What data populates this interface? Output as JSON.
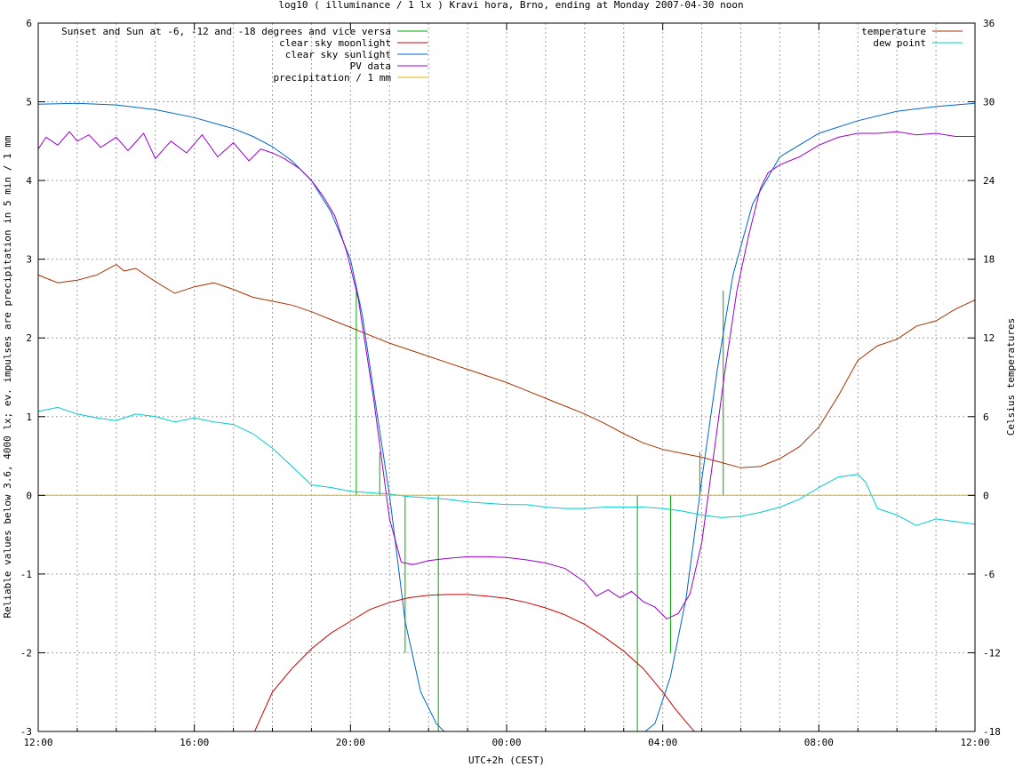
{
  "chart_data": {
    "type": "line",
    "title": "log10 ( illuminance / 1 lx ) Kravi hora, Brno, ending at Monday 2007-04-30 noon",
    "xlabel": "UTC+2h (CEST)",
    "ylabel": "Reliable values below 3.6, 4000 lx; ev. impulses are precipitation in 5 min / 1 mm",
    "y2label": "Celsius temperatures",
    "xlim": [
      12,
      36
    ],
    "ylim": [
      -3,
      6
    ],
    "y2lim": [
      -18,
      36
    ],
    "xticks": [
      {
        "v": 12,
        "label": "12:00"
      },
      {
        "v": 16,
        "label": "16:00"
      },
      {
        "v": 20,
        "label": "20:00"
      },
      {
        "v": 24,
        "label": "00:00"
      },
      {
        "v": 28,
        "label": "04:00"
      },
      {
        "v": 32,
        "label": "08:00"
      },
      {
        "v": 36,
        "label": "12:00"
      }
    ],
    "yticks": [
      {
        "v": -3,
        "label": "-3"
      },
      {
        "v": -2,
        "label": "-2"
      },
      {
        "v": -1,
        "label": "-1"
      },
      {
        "v": 0,
        "label": "0"
      },
      {
        "v": 1,
        "label": "1"
      },
      {
        "v": 2,
        "label": "2"
      },
      {
        "v": 3,
        "label": "3"
      },
      {
        "v": 4,
        "label": "4"
      },
      {
        "v": 5,
        "label": "5"
      },
      {
        "v": 6,
        "label": "6"
      }
    ],
    "y2ticks": [
      {
        "v": -18,
        "label": "-18"
      },
      {
        "v": -12,
        "label": "-12"
      },
      {
        "v": -6,
        "label": "-6"
      },
      {
        "v": 0,
        "label": "0"
      },
      {
        "v": 6,
        "label": "6"
      },
      {
        "v": 12,
        "label": "12"
      },
      {
        "v": 18,
        "label": "18"
      },
      {
        "v": 24,
        "label": "24"
      },
      {
        "v": 30,
        "label": "30"
      },
      {
        "v": 36,
        "label": "36"
      }
    ],
    "grid": true,
    "legend_left": [
      {
        "name": "Sunset and Sun at -6, -12 and -18 degrees and vice versa",
        "color": "#00aa00"
      },
      {
        "name": "clear sky moonlight",
        "color": "#cc0000"
      },
      {
        "name": "clear sky sunlight",
        "color": "#0066cc"
      },
      {
        "name": "PV data",
        "color": "#9900cc"
      },
      {
        "name": "precipitation / 1 mm",
        "color": "#e6b800"
      }
    ],
    "legend_right": [
      {
        "name": "temperature",
        "color": "#aa3300"
      },
      {
        "name": "dew point",
        "color": "#00cccc"
      }
    ],
    "series": [
      {
        "key": "sunlight",
        "color": "#0066cc",
        "axis": "y",
        "x": [
          12.0,
          13.0,
          14.0,
          15.0,
          16.0,
          17.0,
          17.5,
          18.0,
          18.5,
          19.0,
          19.5,
          20.0,
          20.3,
          20.6,
          21.0,
          21.4,
          21.8,
          22.2,
          22.6,
          27.3,
          27.8,
          28.2,
          28.6,
          29.0,
          29.4,
          29.8,
          30.3,
          31.0,
          32.0,
          33.0,
          34.0,
          35.0,
          36.0
        ],
        "y": [
          4.97,
          4.98,
          4.96,
          4.9,
          4.8,
          4.66,
          4.56,
          4.43,
          4.25,
          4.0,
          3.6,
          3.0,
          2.3,
          1.3,
          0.0,
          -1.6,
          -2.5,
          -2.9,
          -3.1,
          -3.1,
          -2.9,
          -2.3,
          -1.3,
          0.2,
          1.6,
          2.8,
          3.7,
          4.3,
          4.6,
          4.76,
          4.88,
          4.94,
          4.98
        ]
      },
      {
        "key": "moonlight",
        "color": "#cc0000",
        "axis": "y",
        "x": [
          17.5,
          18.0,
          18.5,
          19.0,
          19.5,
          20.0,
          20.5,
          21.0,
          21.5,
          22.0,
          22.5,
          23.0,
          23.5,
          24.0,
          24.5,
          25.0,
          25.5,
          26.0,
          26.5,
          27.0,
          27.5,
          28.0,
          28.3,
          28.6,
          28.9
        ],
        "y": [
          -3.05,
          -2.5,
          -2.2,
          -1.95,
          -1.75,
          -1.6,
          -1.45,
          -1.36,
          -1.3,
          -1.27,
          -1.26,
          -1.26,
          -1.28,
          -1.31,
          -1.36,
          -1.43,
          -1.52,
          -1.64,
          -1.8,
          -1.98,
          -2.2,
          -2.5,
          -2.7,
          -2.88,
          -3.05
        ]
      },
      {
        "key": "pv",
        "color": "#9900cc",
        "axis": "y",
        "x": [
          12.0,
          12.2,
          12.5,
          12.8,
          13.0,
          13.3,
          13.6,
          14.0,
          14.3,
          14.7,
          15.0,
          15.4,
          15.8,
          16.2,
          16.6,
          17.0,
          17.4,
          17.7,
          18.0,
          18.3,
          18.7,
          19.0,
          19.3,
          19.6,
          19.9,
          20.2,
          20.6,
          21.0,
          21.3,
          21.6,
          22.0,
          22.5,
          23.0,
          23.5,
          24.0,
          24.5,
          25.0,
          25.5,
          26.0,
          26.3,
          26.6,
          26.9,
          27.2,
          27.5,
          27.8,
          28.1,
          28.4,
          28.7,
          29.0,
          29.3,
          29.6,
          29.9,
          30.2,
          30.5,
          30.7,
          31.0,
          31.5,
          32.0,
          32.5,
          33.0,
          33.5,
          34.0,
          34.5,
          35.0,
          35.5,
          36.0
        ],
        "y": [
          4.4,
          4.55,
          4.45,
          4.62,
          4.5,
          4.58,
          4.42,
          4.55,
          4.38,
          4.6,
          4.28,
          4.5,
          4.35,
          4.58,
          4.3,
          4.48,
          4.25,
          4.4,
          4.35,
          4.28,
          4.15,
          4.0,
          3.8,
          3.55,
          3.1,
          2.5,
          1.2,
          -0.3,
          -0.85,
          -0.88,
          -0.83,
          -0.8,
          -0.78,
          -0.78,
          -0.79,
          -0.82,
          -0.86,
          -0.93,
          -1.1,
          -1.28,
          -1.2,
          -1.3,
          -1.22,
          -1.35,
          -1.42,
          -1.57,
          -1.5,
          -1.25,
          -0.6,
          0.5,
          1.6,
          2.6,
          3.3,
          3.9,
          4.1,
          4.2,
          4.3,
          4.45,
          4.55,
          4.6,
          4.6,
          4.62,
          4.58,
          4.6,
          4.56,
          4.56
        ]
      },
      {
        "key": "temperature",
        "color": "#aa3300",
        "axis": "y2",
        "x": [
          12.0,
          12.5,
          13.0,
          13.5,
          14.0,
          14.2,
          14.5,
          15.0,
          15.5,
          16.0,
          16.5,
          17.0,
          17.5,
          18.0,
          18.5,
          19.0,
          19.5,
          20.0,
          20.5,
          21.0,
          21.5,
          22.0,
          22.5,
          23.0,
          23.5,
          24.0,
          24.5,
          25.0,
          25.5,
          26.0,
          26.5,
          27.0,
          27.5,
          28.0,
          28.5,
          29.0,
          29.5,
          30.0,
          30.5,
          31.0,
          31.5,
          32.0,
          32.5,
          33.0,
          33.5,
          34.0,
          34.5,
          35.0,
          35.5,
          36.0
        ],
        "y": [
          16.8,
          16.2,
          16.4,
          16.8,
          17.6,
          17.1,
          17.3,
          16.3,
          15.4,
          15.9,
          16.2,
          15.7,
          15.1,
          14.8,
          14.5,
          14.0,
          13.4,
          12.8,
          12.2,
          11.6,
          11.1,
          10.6,
          10.1,
          9.6,
          9.1,
          8.6,
          8.0,
          7.4,
          6.8,
          6.2,
          5.5,
          4.7,
          4.0,
          3.5,
          3.2,
          2.9,
          2.5,
          2.1,
          2.2,
          2.8,
          3.7,
          5.2,
          7.6,
          10.3,
          11.4,
          11.9,
          12.9,
          13.3,
          14.2,
          14.9
        ]
      },
      {
        "key": "dewpoint",
        "color": "#00cccc",
        "axis": "y2",
        "x": [
          12.0,
          12.5,
          13.0,
          13.5,
          14.0,
          14.5,
          15.0,
          15.5,
          16.0,
          16.5,
          17.0,
          17.5,
          18.0,
          18.5,
          19.0,
          19.5,
          20.0,
          20.5,
          21.0,
          21.5,
          22.0,
          22.5,
          23.0,
          23.5,
          24.0,
          24.5,
          25.0,
          25.5,
          26.0,
          26.5,
          27.0,
          27.5,
          28.0,
          28.5,
          29.0,
          29.5,
          30.0,
          30.5,
          31.0,
          31.5,
          32.0,
          32.5,
          33.0,
          33.2,
          33.5,
          34.0,
          34.5,
          35.0,
          35.5,
          36.0
        ],
        "y": [
          6.4,
          6.7,
          6.2,
          5.9,
          5.7,
          6.2,
          6.0,
          5.6,
          5.9,
          5.6,
          5.4,
          4.7,
          3.6,
          2.2,
          0.8,
          0.6,
          0.3,
          0.2,
          0.1,
          -0.1,
          -0.2,
          -0.3,
          -0.5,
          -0.6,
          -0.7,
          -0.7,
          -0.9,
          -1.0,
          -1.0,
          -0.9,
          -0.9,
          -0.9,
          -1.0,
          -1.2,
          -1.5,
          -1.7,
          -1.6,
          -1.3,
          -0.9,
          -0.3,
          0.6,
          1.4,
          1.6,
          1.0,
          -1.0,
          -1.5,
          -2.3,
          -1.8,
          -2.0,
          -2.2
        ]
      },
      {
        "key": "precipitation",
        "color": "#e6b800",
        "axis": "y",
        "x": [
          12.0,
          36.0
        ],
        "y": [
          0.0,
          0.0
        ]
      }
    ],
    "impulses": {
      "color": "#00aa00",
      "x": [
        20.15,
        20.75,
        21.4,
        22.25,
        27.35,
        28.2,
        28.95,
        29.55
      ],
      "y": [
        2.6,
        0.55,
        -2.0,
        -3.0,
        -3.0,
        -2.0,
        0.55,
        2.6
      ]
    }
  }
}
